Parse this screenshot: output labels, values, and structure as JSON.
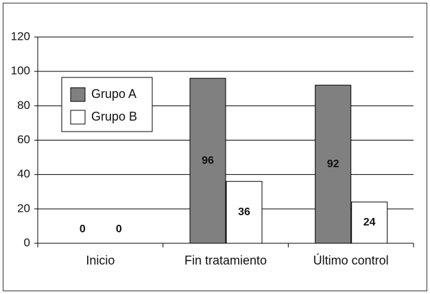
{
  "chart_data": {
    "type": "bar",
    "categories": [
      "Inicio",
      "Fin tratamiento",
      "Último control"
    ],
    "series": [
      {
        "name": "Grupo A",
        "color": "#808080",
        "values": [
          0,
          96,
          92
        ]
      },
      {
        "name": "Grupo B",
        "color": "#ffffff",
        "values": [
          0,
          36,
          24
        ]
      }
    ],
    "ylim": [
      0,
      120
    ],
    "yticks": [
      0,
      20,
      40,
      60,
      80,
      100,
      120
    ],
    "grid": true,
    "legend": "top-left"
  }
}
